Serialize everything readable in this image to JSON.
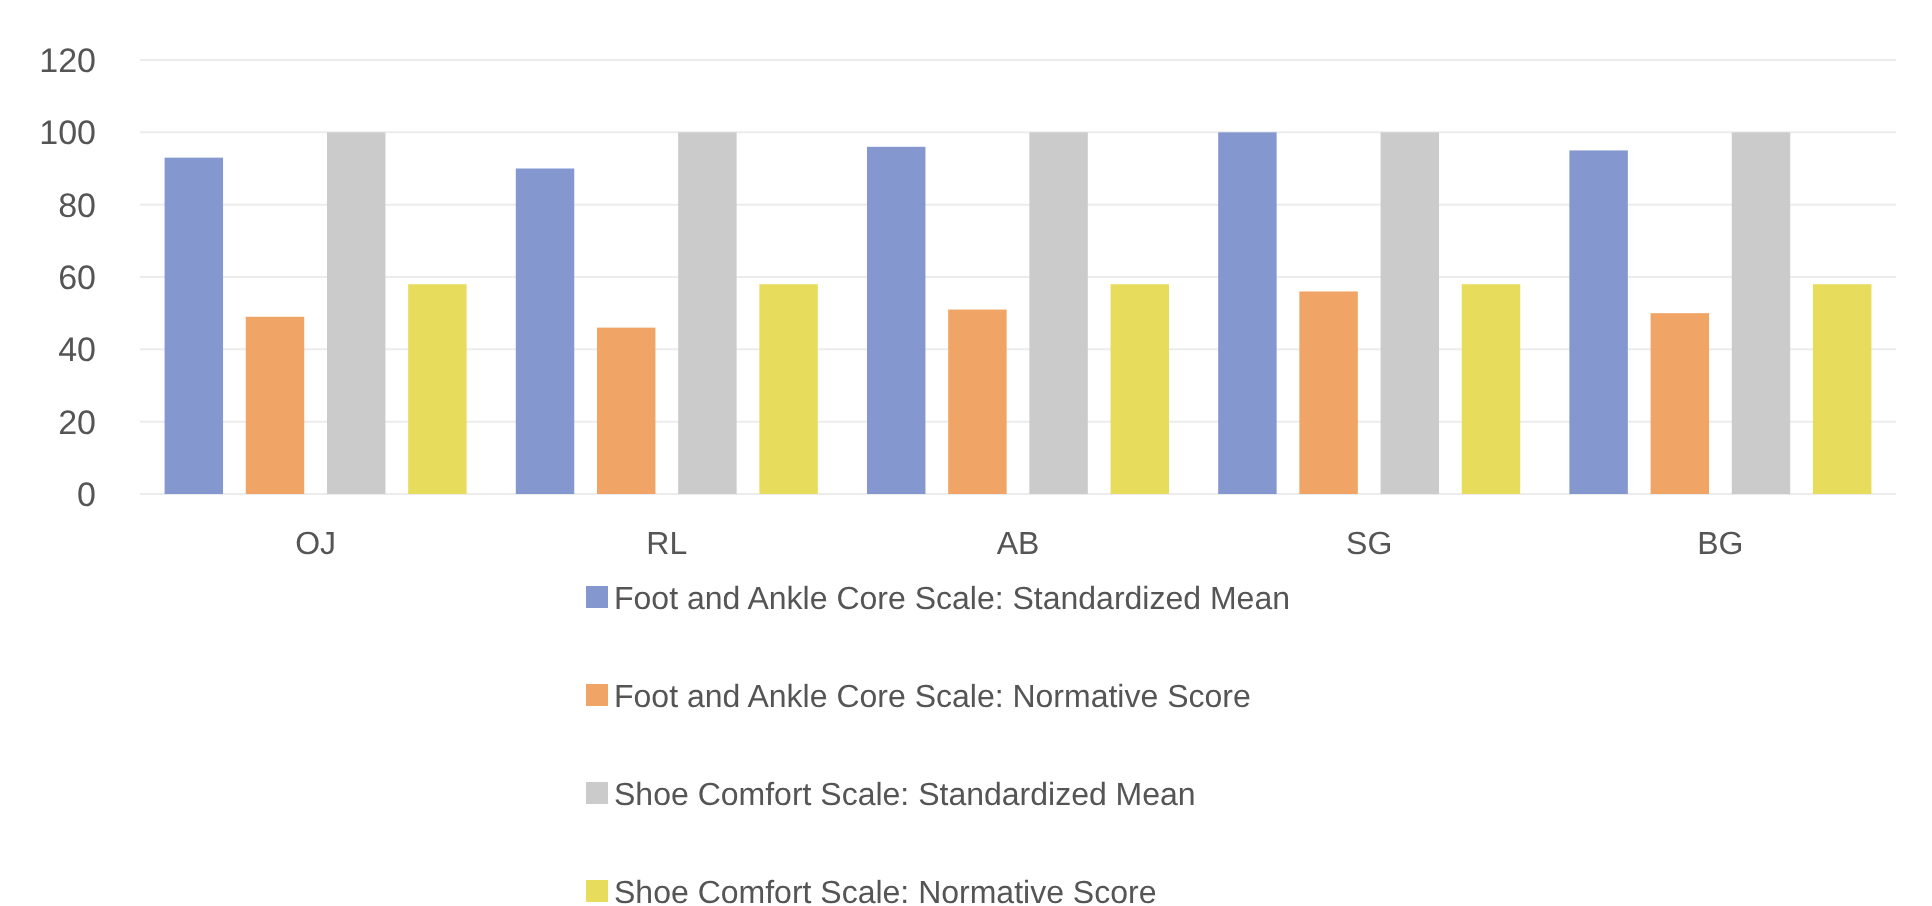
{
  "chart_data": {
    "type": "bar",
    "categories": [
      "OJ",
      "RL",
      "AB",
      "SG",
      "BG"
    ],
    "series": [
      {
        "name": "Foot and Ankle Core Scale: Standardized Mean",
        "color": "#8497cf",
        "values": [
          93,
          90,
          96,
          100,
          95
        ]
      },
      {
        "name": "Foot and Ankle Core Scale: Normative Score",
        "color": "#f0a465",
        "values": [
          49,
          46,
          51,
          56,
          50
        ]
      },
      {
        "name": "Shoe Comfort Scale: Standardized Mean",
        "color": "#cbcbcb",
        "values": [
          100,
          100,
          100,
          100,
          100
        ]
      },
      {
        "name": "Shoe Comfort Scale: Normative Score",
        "color": "#e8dc5c",
        "values": [
          58,
          58,
          58,
          58,
          58
        ]
      }
    ],
    "ylim": [
      0,
      120
    ],
    "yticks": [
      0,
      20,
      40,
      60,
      80,
      100,
      120
    ],
    "grid": "y",
    "legend": "bottom"
  }
}
